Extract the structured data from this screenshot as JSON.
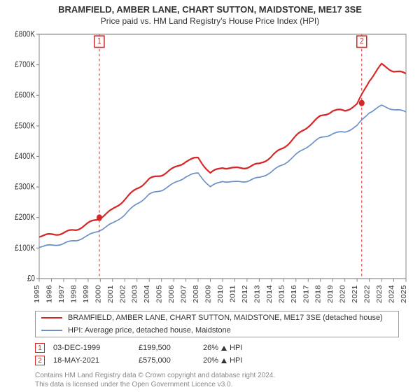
{
  "title": "BRAMFIELD, AMBER LANE, CHART SUTTON, MAIDSTONE, ME17 3SE",
  "subtitle": "Price paid vs. HM Land Registry's House Price Index (HPI)",
  "chart": {
    "type": "line",
    "background_color": "#ffffff",
    "axis_color": "#888888",
    "x_years": [
      1995,
      1996,
      1997,
      1998,
      1999,
      2000,
      2001,
      2002,
      2003,
      2004,
      2005,
      2006,
      2007,
      2008,
      2009,
      2010,
      2011,
      2012,
      2013,
      2014,
      2015,
      2016,
      2017,
      2018,
      2019,
      2020,
      2021,
      2022,
      2023,
      2024,
      2025
    ],
    "xlim": [
      1995,
      2025
    ],
    "ylabel_prefix": "£",
    "ylabel_suffix": "K",
    "y_ticks": [
      0,
      100,
      200,
      300,
      400,
      500,
      600,
      700,
      800
    ],
    "ylim": [
      0,
      800
    ],
    "series": [
      {
        "name": "property",
        "label": "BRAMFIELD, AMBER LANE, CHART SUTTON, MAIDSTONE, ME17 3SE (detached house)",
        "color": "#d62728",
        "width": 2,
        "y_by_year": [
          140,
          143,
          150,
          160,
          180,
          200,
          225,
          260,
          295,
          325,
          340,
          360,
          385,
          395,
          345,
          365,
          360,
          365,
          375,
          400,
          430,
          465,
          500,
          530,
          550,
          550,
          570,
          650,
          700,
          680,
          670
        ]
      },
      {
        "name": "hpi",
        "label": "HPI: Average price, detached house, Maidstone",
        "color": "#6a8fc7",
        "width": 1.5,
        "y_by_year": [
          105,
          108,
          115,
          125,
          140,
          160,
          180,
          210,
          245,
          275,
          290,
          310,
          335,
          345,
          300,
          320,
          315,
          320,
          330,
          350,
          375,
          405,
          435,
          460,
          475,
          480,
          500,
          545,
          565,
          555,
          545
        ]
      }
    ],
    "markers": [
      {
        "n": "1",
        "year": 1999.92,
        "price_k": 199.5
      },
      {
        "n": "2",
        "year": 2021.38,
        "price_k": 575
      }
    ]
  },
  "legend": {
    "items": [
      {
        "color": "#d62728",
        "label": "BRAMFIELD, AMBER LANE, CHART SUTTON, MAIDSTONE, ME17 3SE (detached house)"
      },
      {
        "color": "#6a8fc7",
        "label": "HPI: Average price, detached house, Maidstone"
      }
    ]
  },
  "sales": [
    {
      "n": "1",
      "date": "03-DEC-1999",
      "price": "£199,500",
      "delta": "26%",
      "delta_suffix": "HPI"
    },
    {
      "n": "2",
      "date": "18-MAY-2021",
      "price": "£575,000",
      "delta": "20%",
      "delta_suffix": "HPI"
    }
  ],
  "footer": {
    "line1": "Contains HM Land Registry data © Crown copyright and database right 2024.",
    "line2": "This data is licensed under the Open Government Licence v3.0."
  }
}
